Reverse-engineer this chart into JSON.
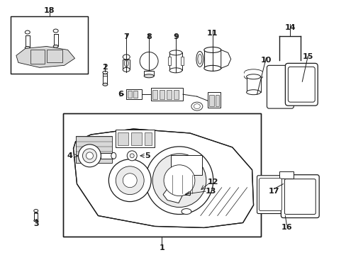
{
  "bg_color": "#ffffff",
  "line_color": "#1a1a1a",
  "gray_fill": "#d8d8d8",
  "light_gray": "#ebebeb",
  "fig_width": 4.89,
  "fig_height": 3.6,
  "xlim": [
    0,
    489
  ],
  "ylim": [
    0,
    360
  ]
}
